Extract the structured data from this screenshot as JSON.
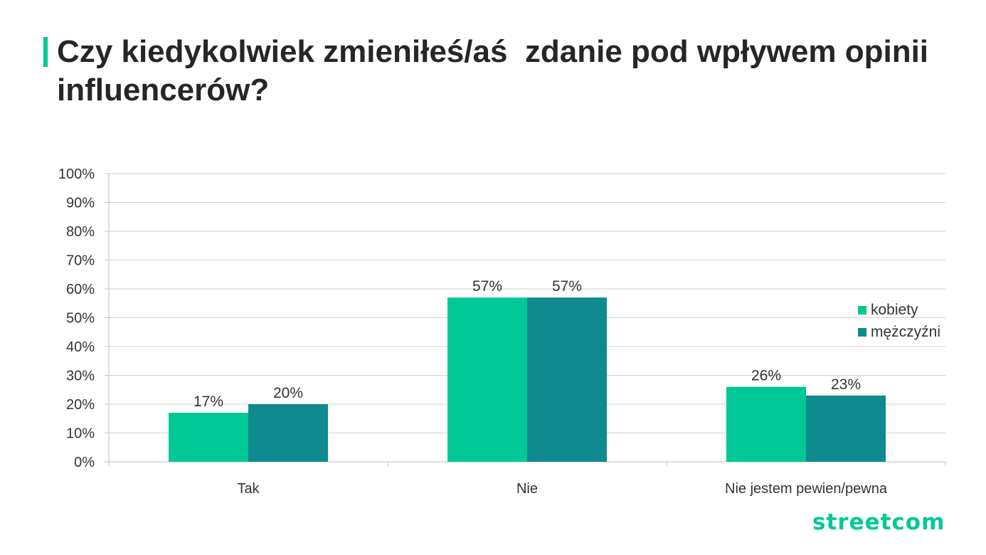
{
  "title": "Czy kiedykolwiek zmieniłeś/aś  zdanie pod wpływem opinii influencerów?",
  "logo_text": "streetcom",
  "accent_color": "#00c896",
  "chart_data": {
    "type": "bar",
    "categories": [
      "Tak",
      "Nie",
      "Nie jestem pewien/pewna"
    ],
    "series": [
      {
        "name": "kobiety",
        "values": [
          17,
          57,
          26
        ],
        "color": "#00c896",
        "labels": [
          "17%",
          "57%",
          "26%"
        ]
      },
      {
        "name": "mężczyźni",
        "values": [
          20,
          57,
          23
        ],
        "color": "#0f8a8e",
        "labels": [
          "20%",
          "57%",
          "23%"
        ]
      }
    ],
    "ylim": [
      0,
      100
    ],
    "yticks": [
      "0%",
      "10%",
      "20%",
      "30%",
      "40%",
      "50%",
      "60%",
      "70%",
      "80%",
      "90%",
      "100%"
    ],
    "grid": true,
    "legend_position": "right"
  }
}
